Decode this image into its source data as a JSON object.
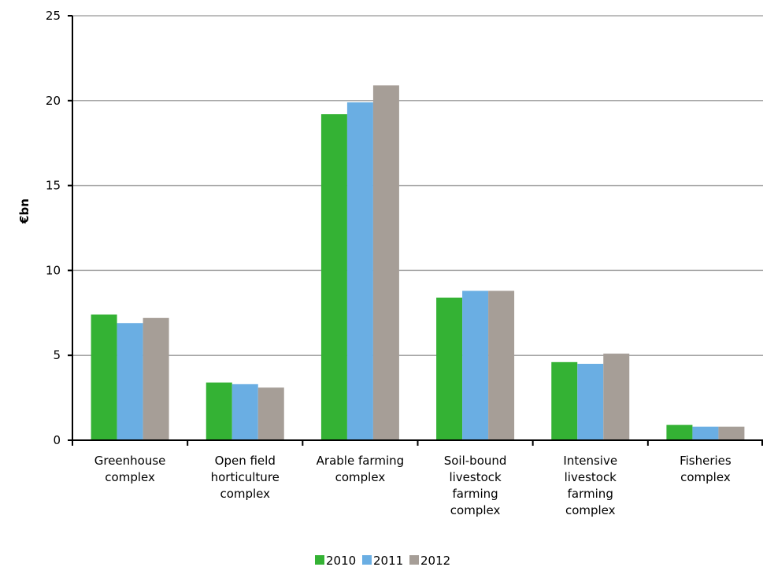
{
  "chart_data": {
    "type": "bar",
    "title": "",
    "xlabel": "",
    "ylabel": "€bn",
    "ylim": [
      0,
      25
    ],
    "yticks": [
      0,
      5,
      10,
      15,
      20,
      25
    ],
    "grid": true,
    "legend_position": "bottom",
    "categories": [
      [
        "Greenhouse",
        "complex"
      ],
      [
        "Open field",
        "horticulture",
        "complex"
      ],
      [
        "Arable farming",
        "complex"
      ],
      [
        "Soil-bound",
        "livestock",
        "farming",
        "complex"
      ],
      [
        "Intensive",
        "livestock",
        "farming",
        "complex"
      ],
      [
        "Fisheries",
        "complex"
      ]
    ],
    "series": [
      {
        "name": "2010",
        "color": "#34b234",
        "values": [
          7.4,
          3.4,
          19.2,
          8.4,
          4.6,
          0.9
        ]
      },
      {
        "name": "2011",
        "color": "#6aaee3",
        "values": [
          6.9,
          3.3,
          19.9,
          8.8,
          4.5,
          0.8
        ]
      },
      {
        "name": "2012",
        "color": "#a69e97",
        "values": [
          7.2,
          3.1,
          20.9,
          8.8,
          5.1,
          0.8
        ]
      }
    ]
  }
}
